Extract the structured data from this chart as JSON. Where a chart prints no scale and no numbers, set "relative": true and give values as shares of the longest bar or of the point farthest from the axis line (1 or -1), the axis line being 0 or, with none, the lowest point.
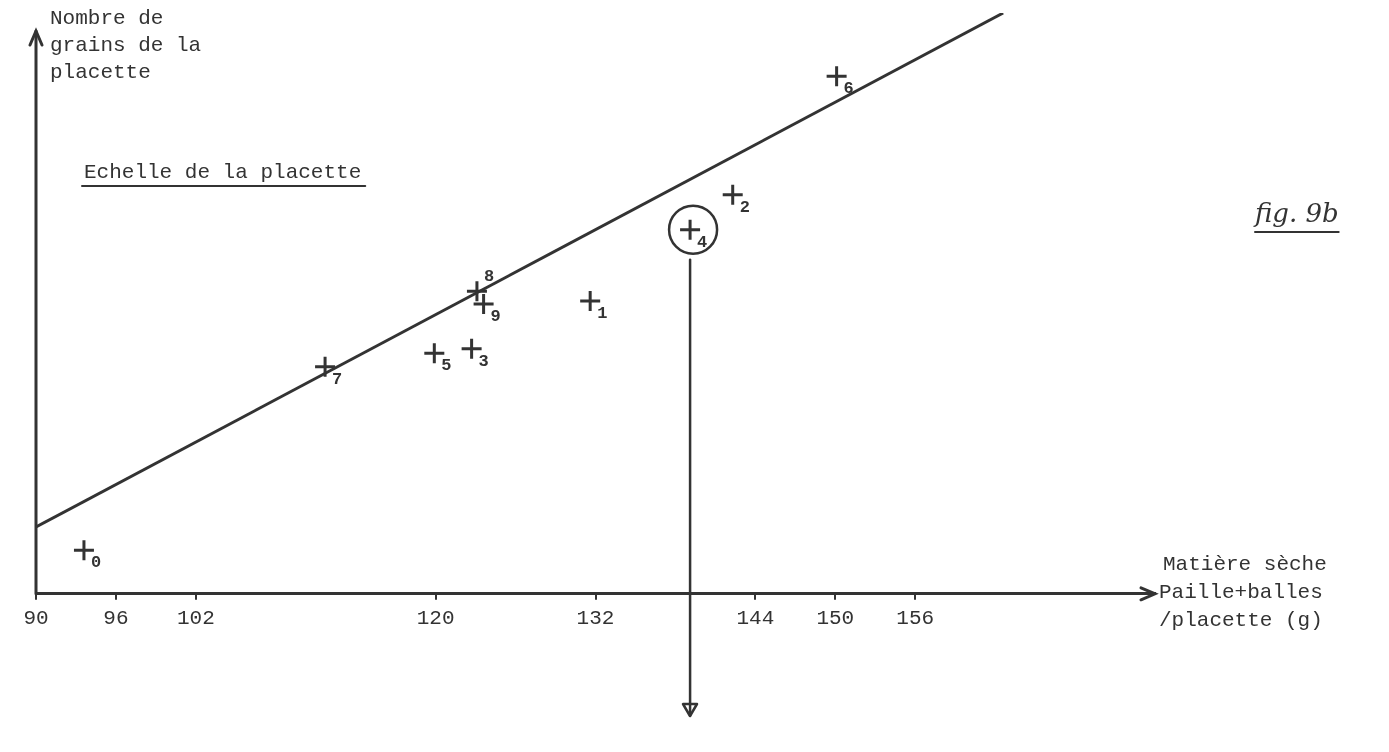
{
  "chart_data": {
    "type": "scatter",
    "title": "fig. 9b",
    "xlabel": "Matière sèche Paille+balles /placette (g)",
    "ylabel": "Nombre de grains de la placette",
    "annotations": [
      "Echelle de la placette",
      {
        "text": "0",
        "x": 93.6,
        "y": 0.075
      },
      {
        "text": "7",
        "x": 111.7,
        "y": 0.391
      },
      {
        "text": "5",
        "x": 119.9,
        "y": 0.414
      },
      {
        "text": "3",
        "x": 122.7,
        "y": 0.422
      },
      {
        "text": "8",
        "x": 123.1,
        "y": 0.521
      },
      {
        "text": "9",
        "x": 123.6,
        "y": 0.499
      },
      {
        "text": "1",
        "x": 131.6,
        "y": 0.504
      },
      {
        "text": "4",
        "x": 139.1,
        "y": 0.627
      },
      {
        "text": "2",
        "x": 142.3,
        "y": 0.687
      },
      {
        "text": "6",
        "x": 150.1,
        "y": 0.891
      }
    ],
    "relative": true,
    "xlim": [
      90,
      174
    ],
    "xticks": [
      90,
      96,
      102,
      120,
      132,
      144,
      150,
      156
    ],
    "series": [
      {
        "marker": "cross",
        "color": "#333333",
        "x": [
          93.6,
          111.7,
          119.9,
          122.7,
          123.1,
          123.6,
          131.6,
          139.1,
          142.3,
          150.1
        ],
        "values": [
          0.075,
          0.391,
          0.414,
          0.422,
          0.521,
          0.499,
          0.504,
          0.627,
          0.687,
          0.891
        ]
      },
      {
        "type": "line",
        "color": "#333333",
        "x": [
          90,
          162.6
        ],
        "values": [
          0.115,
          1
        ]
      }
    ],
    "ref_lines": [
      {
        "axis": "x",
        "value": 139.1
      }
    ]
  }
}
